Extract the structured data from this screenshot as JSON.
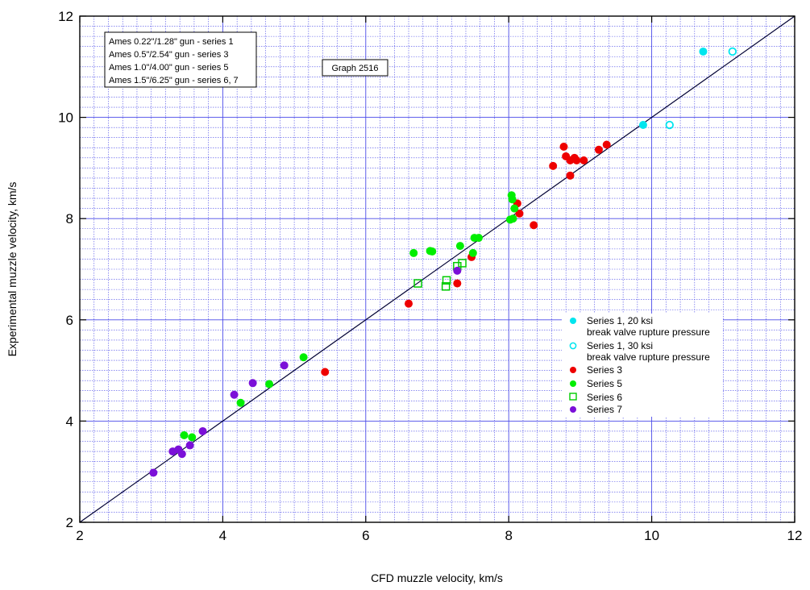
{
  "chart_data": {
    "type": "scatter",
    "title": "",
    "xlabel": "CFD muzzle velocity, km/s",
    "ylabel": "Experimental muzzle velocity, km/s",
    "xlim": [
      2,
      12
    ],
    "ylim": [
      2,
      12
    ],
    "xticks": [
      "2",
      "4",
      "6",
      "8",
      "10",
      "12"
    ],
    "yticks": [
      "2",
      "4",
      "6",
      "8",
      "10",
      "12"
    ],
    "grid": true,
    "reference_line": {
      "type": "y=x"
    },
    "graph_label": "Graph 2516",
    "info_lines": [
      "Ames 0.22\"/1.28\" gun - series 1",
      "Ames 0.5\"/2.54\" gun - series 3",
      "Ames 1.0\"/4.00\" gun - series 5",
      "Ames 1.5\"/6.25\" gun - series 6, 7"
    ],
    "legend_position": "lower-right",
    "series": [
      {
        "name": "Series 1, 20 ksi",
        "name_line2": "break valve rupture pressure",
        "color": "#00e5ee",
        "marker": "filled-circle",
        "points": [
          [
            9.88,
            9.85
          ],
          [
            10.72,
            11.3
          ]
        ]
      },
      {
        "name": "Series 1, 30 ksi",
        "name_line2": "break valve rupture pressure",
        "color": "#00e5ee",
        "marker": "open-circle",
        "points": [
          [
            10.25,
            9.85
          ],
          [
            11.13,
            11.3
          ]
        ]
      },
      {
        "name": "Series 3",
        "color": "#ee0000",
        "marker": "filled-circle",
        "points": [
          [
            5.43,
            4.97
          ],
          [
            6.6,
            6.32
          ],
          [
            7.28,
            6.72
          ],
          [
            7.48,
            7.24
          ],
          [
            8.12,
            8.3
          ],
          [
            8.15,
            8.1
          ],
          [
            8.35,
            7.87
          ],
          [
            8.62,
            9.04
          ],
          [
            8.77,
            9.42
          ],
          [
            8.8,
            9.23
          ],
          [
            8.86,
            9.15
          ],
          [
            8.86,
            8.85
          ],
          [
            8.92,
            9.2
          ],
          [
            8.95,
            9.15
          ],
          [
            9.05,
            9.15
          ],
          [
            9.26,
            9.36
          ],
          [
            9.37,
            9.46
          ]
        ]
      },
      {
        "name": "Series 5",
        "color": "#00ee00",
        "marker": "filled-circle",
        "points": [
          [
            3.46,
            3.72
          ],
          [
            3.57,
            3.68
          ],
          [
            4.25,
            4.36
          ],
          [
            4.65,
            4.73
          ],
          [
            5.13,
            5.26
          ],
          [
            6.67,
            7.32
          ],
          [
            6.9,
            7.36
          ],
          [
            6.93,
            7.35
          ],
          [
            7.32,
            7.46
          ],
          [
            7.5,
            7.32
          ],
          [
            7.52,
            7.62
          ],
          [
            7.58,
            7.62
          ],
          [
            8.02,
            7.98
          ],
          [
            8.04,
            8.46
          ],
          [
            8.05,
            8.38
          ],
          [
            8.06,
            8.0
          ],
          [
            8.08,
            8.2
          ]
        ]
      },
      {
        "name": "Series 6",
        "color": "#00cc00",
        "marker": "open-square",
        "points": [
          [
            6.73,
            6.72
          ],
          [
            7.12,
            6.66
          ],
          [
            7.13,
            6.78
          ],
          [
            7.28,
            7.06
          ],
          [
            7.35,
            7.12
          ]
        ]
      },
      {
        "name": "Series 7",
        "color": "#7b10d8",
        "marker": "filled-circle",
        "points": [
          [
            3.03,
            2.98
          ],
          [
            3.3,
            3.4
          ],
          [
            3.38,
            3.44
          ],
          [
            3.43,
            3.35
          ],
          [
            3.54,
            3.52
          ],
          [
            3.72,
            3.8
          ],
          [
            4.16,
            4.52
          ],
          [
            4.42,
            4.75
          ],
          [
            4.86,
            5.1
          ],
          [
            7.28,
            6.97
          ]
        ]
      }
    ]
  }
}
